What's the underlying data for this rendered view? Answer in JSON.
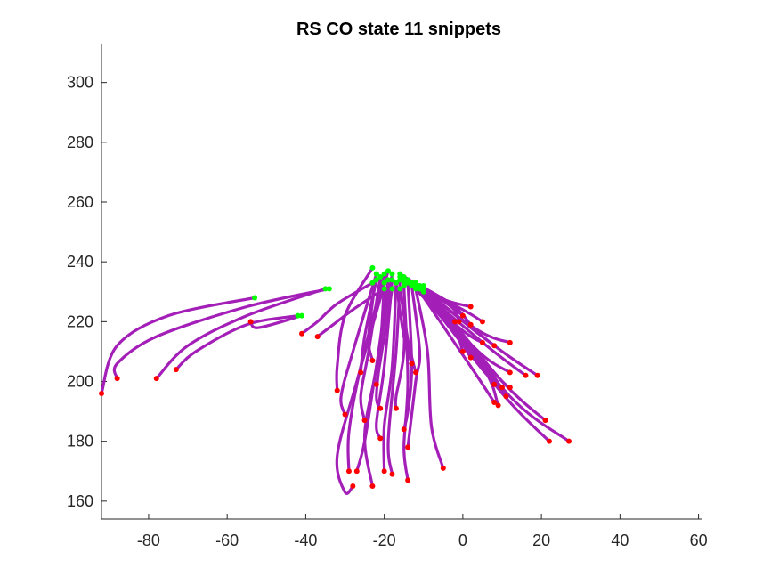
{
  "chart_data": {
    "type": "line",
    "title": "RS  CO state 11 snippets",
    "xlabel": "",
    "ylabel": "",
    "xlim": [
      -92,
      61
    ],
    "ylim": [
      154,
      313
    ],
    "xticks": [
      -80,
      -60,
      -40,
      -20,
      0,
      20,
      40,
      60
    ],
    "yticks": [
      160,
      180,
      200,
      220,
      240,
      260,
      280,
      300
    ],
    "xtick_labels": [
      "-80",
      "-60",
      "-40",
      "-20",
      "0",
      "20",
      "40",
      "60"
    ],
    "ytick_labels": [
      "160",
      "180",
      "200",
      "220",
      "240",
      "260",
      "280",
      "300"
    ],
    "grid": false,
    "legend": "none",
    "colors": {
      "trajectory": "#a31fb8",
      "start": "#00ff00",
      "end": "#ff0000",
      "axes": "#262626"
    },
    "series": [
      {
        "points": [
          [
            -53,
            228
          ],
          [
            -75,
            222
          ],
          [
            -88,
            212
          ],
          [
            -92,
            196
          ]
        ]
      },
      {
        "points": [
          [
            -34,
            231
          ],
          [
            -55,
            225
          ],
          [
            -78,
            215
          ],
          [
            -88,
            206
          ],
          [
            -88,
            201
          ]
        ]
      },
      {
        "points": [
          [
            -35,
            231
          ],
          [
            -55,
            222
          ],
          [
            -70,
            212
          ],
          [
            -78,
            201
          ]
        ]
      },
      {
        "points": [
          [
            -42,
            222
          ],
          [
            -55,
            219
          ],
          [
            -68,
            210
          ],
          [
            -73,
            204
          ]
        ]
      },
      {
        "points": [
          [
            -41,
            222
          ],
          [
            -52,
            218
          ],
          [
            -54,
            220
          ]
        ]
      },
      {
        "points": [
          [
            -23,
            233
          ],
          [
            -32,
            226
          ],
          [
            -37,
            220
          ],
          [
            -41,
            216
          ]
        ]
      },
      {
        "points": [
          [
            -20,
            231
          ],
          [
            -28,
            224
          ],
          [
            -33,
            219
          ],
          [
            -37,
            215
          ]
        ]
      },
      {
        "points": [
          [
            -23,
            238
          ],
          [
            -30,
            222
          ],
          [
            -32,
            205
          ],
          [
            -32,
            197
          ]
        ]
      },
      {
        "points": [
          [
            -22,
            236
          ],
          [
            -28,
            210
          ],
          [
            -31,
            195
          ],
          [
            -30,
            189
          ]
        ]
      },
      {
        "points": [
          [
            -19,
            237
          ],
          [
            -27,
            200
          ],
          [
            -32,
            175
          ],
          [
            -30,
            163
          ],
          [
            -28,
            165
          ]
        ]
      },
      {
        "points": [
          [
            -20,
            236
          ],
          [
            -26,
            205
          ],
          [
            -29,
            183
          ],
          [
            -29,
            170
          ]
        ]
      },
      {
        "points": [
          [
            -18,
            236
          ],
          [
            -22,
            205
          ],
          [
            -25,
            180
          ],
          [
            -27,
            170
          ]
        ]
      },
      {
        "points": [
          [
            -21,
            235
          ],
          [
            -24,
            210
          ],
          [
            -26,
            195
          ],
          [
            -25,
            187
          ]
        ]
      },
      {
        "points": [
          [
            -19,
            234
          ],
          [
            -22,
            205
          ],
          [
            -25,
            182
          ],
          [
            -23,
            165
          ]
        ]
      },
      {
        "points": [
          [
            -18,
            234
          ],
          [
            -20,
            205
          ],
          [
            -22,
            186
          ],
          [
            -21,
            181
          ]
        ]
      },
      {
        "points": [
          [
            -20,
            233
          ],
          [
            -21,
            210
          ],
          [
            -22,
            195
          ],
          [
            -21,
            191
          ]
        ]
      },
      {
        "points": [
          [
            -17,
            233
          ],
          [
            -18,
            205
          ],
          [
            -20,
            185
          ],
          [
            -20,
            170
          ]
        ]
      },
      {
        "points": [
          [
            -16,
            234
          ],
          [
            -17,
            210
          ],
          [
            -19,
            180
          ],
          [
            -18,
            169
          ]
        ]
      },
      {
        "points": [
          [
            -15,
            233
          ],
          [
            -15,
            210
          ],
          [
            -17,
            195
          ],
          [
            -17,
            191
          ]
        ]
      },
      {
        "points": [
          [
            -15,
            232
          ],
          [
            -14,
            200
          ],
          [
            -15,
            178
          ],
          [
            -14,
            167
          ]
        ]
      },
      {
        "points": [
          [
            -14,
            233
          ],
          [
            -13,
            205
          ],
          [
            -14,
            190
          ],
          [
            -15,
            184
          ]
        ]
      },
      {
        "points": [
          [
            -13,
            232
          ],
          [
            -11,
            210
          ],
          [
            -12,
            200
          ],
          [
            -14,
            178
          ]
        ]
      },
      {
        "points": [
          [
            -12,
            231
          ],
          [
            -9,
            210
          ],
          [
            -8,
            185
          ],
          [
            -5,
            171
          ]
        ]
      },
      {
        "points": [
          [
            -17,
            233
          ],
          [
            -15,
            215
          ],
          [
            -13,
            206
          ]
        ]
      },
      {
        "points": [
          [
            -16,
            231
          ],
          [
            -14,
            214
          ],
          [
            -12,
            203
          ]
        ]
      },
      {
        "points": [
          [
            -22,
            234
          ],
          [
            -25,
            215
          ],
          [
            -26,
            203
          ]
        ]
      },
      {
        "points": [
          [
            -22,
            236
          ],
          [
            -24,
            215
          ],
          [
            -23,
            207
          ]
        ]
      },
      {
        "points": [
          [
            -18,
            231
          ],
          [
            -20,
            215
          ],
          [
            -22,
            199
          ]
        ]
      },
      {
        "points": [
          [
            -16,
            236
          ],
          [
            -6,
            228
          ],
          [
            2,
            225
          ]
        ]
      },
      {
        "points": [
          [
            -16,
            235
          ],
          [
            -5,
            227
          ],
          [
            0,
            222
          ]
        ]
      },
      {
        "points": [
          [
            -15,
            235
          ],
          [
            -3,
            226
          ],
          [
            2,
            219
          ]
        ]
      },
      {
        "points": [
          [
            -15,
            234
          ],
          [
            -4,
            222
          ],
          [
            -2,
            220
          ]
        ]
      },
      {
        "points": [
          [
            -14,
            234
          ],
          [
            0,
            224
          ],
          [
            5,
            220
          ]
        ]
      },
      {
        "points": [
          [
            -14,
            233
          ],
          [
            -3,
            219
          ],
          [
            0,
            210
          ]
        ]
      },
      {
        "points": [
          [
            -13,
            233
          ],
          [
            -2,
            216
          ],
          [
            2,
            208
          ]
        ]
      },
      {
        "points": [
          [
            -13,
            232
          ],
          [
            0,
            217
          ],
          [
            5,
            213
          ]
        ]
      },
      {
        "points": [
          [
            -12,
            233
          ],
          [
            2,
            218
          ],
          [
            8,
            212
          ]
        ]
      },
      {
        "points": [
          [
            -12,
            232
          ],
          [
            4,
            217
          ],
          [
            12,
            213
          ]
        ]
      },
      {
        "points": [
          [
            -13,
            233
          ],
          [
            2,
            212
          ],
          [
            8,
            199
          ]
        ]
      },
      {
        "points": [
          [
            -12,
            232
          ],
          [
            4,
            210
          ],
          [
            12,
            203
          ]
        ]
      },
      {
        "points": [
          [
            -12,
            232
          ],
          [
            6,
            212
          ],
          [
            16,
            202
          ]
        ]
      },
      {
        "points": [
          [
            -11,
            232
          ],
          [
            8,
            212
          ],
          [
            19,
            202
          ]
        ]
      },
      {
        "points": [
          [
            -11,
            232
          ],
          [
            5,
            205
          ],
          [
            9,
            192
          ]
        ]
      },
      {
        "points": [
          [
            -12,
            232
          ],
          [
            2,
            205
          ],
          [
            8,
            193
          ]
        ]
      },
      {
        "points": [
          [
            -11,
            231
          ],
          [
            6,
            205
          ],
          [
            11,
            195
          ]
        ]
      },
      {
        "points": [
          [
            -11,
            231
          ],
          [
            5,
            204
          ],
          [
            10,
            198
          ]
        ]
      },
      {
        "points": [
          [
            -10,
            232
          ],
          [
            8,
            203
          ],
          [
            12,
            198
          ]
        ]
      },
      {
        "points": [
          [
            -10,
            231
          ],
          [
            10,
            200
          ],
          [
            21,
            187
          ]
        ]
      },
      {
        "points": [
          [
            -10,
            230
          ],
          [
            10,
            196
          ],
          [
            22,
            180
          ]
        ]
      },
      {
        "points": [
          [
            -10,
            231
          ],
          [
            12,
            195
          ],
          [
            27,
            180
          ]
        ]
      },
      {
        "points": [
          [
            -14,
            234
          ],
          [
            -3,
            225
          ],
          [
            -1,
            220
          ]
        ]
      }
    ]
  }
}
